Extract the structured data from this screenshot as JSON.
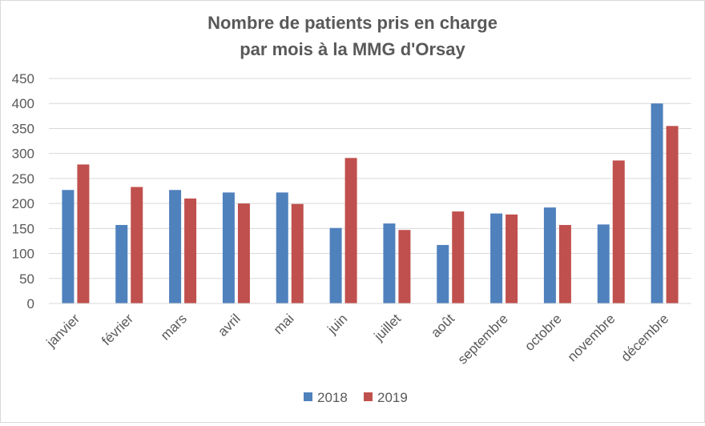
{
  "chart_data": {
    "type": "bar",
    "title_lines": [
      "Nombre de patients pris en charge",
      "par mois à la MMG d'Orsay"
    ],
    "categories": [
      "janvier",
      "février",
      "mars",
      "avril",
      "mai",
      "juin",
      "juillet",
      "août",
      "septembre",
      "octobre",
      "novembre",
      "décembre"
    ],
    "series": [
      {
        "name": "2018",
        "color": "#4f81bd",
        "values": [
          227,
          157,
          227,
          222,
          222,
          151,
          160,
          117,
          180,
          192,
          158,
          400
        ]
      },
      {
        "name": "2019",
        "color": "#c0504d",
        "values": [
          278,
          233,
          210,
          200,
          199,
          291,
          147,
          184,
          178,
          157,
          286,
          355
        ]
      }
    ],
    "ylim": [
      0,
      450
    ],
    "yticks": [
      0,
      50,
      100,
      150,
      200,
      250,
      300,
      350,
      400,
      450
    ],
    "xlabel": "",
    "ylabel": "",
    "grid": true,
    "legend_position": "bottom"
  }
}
